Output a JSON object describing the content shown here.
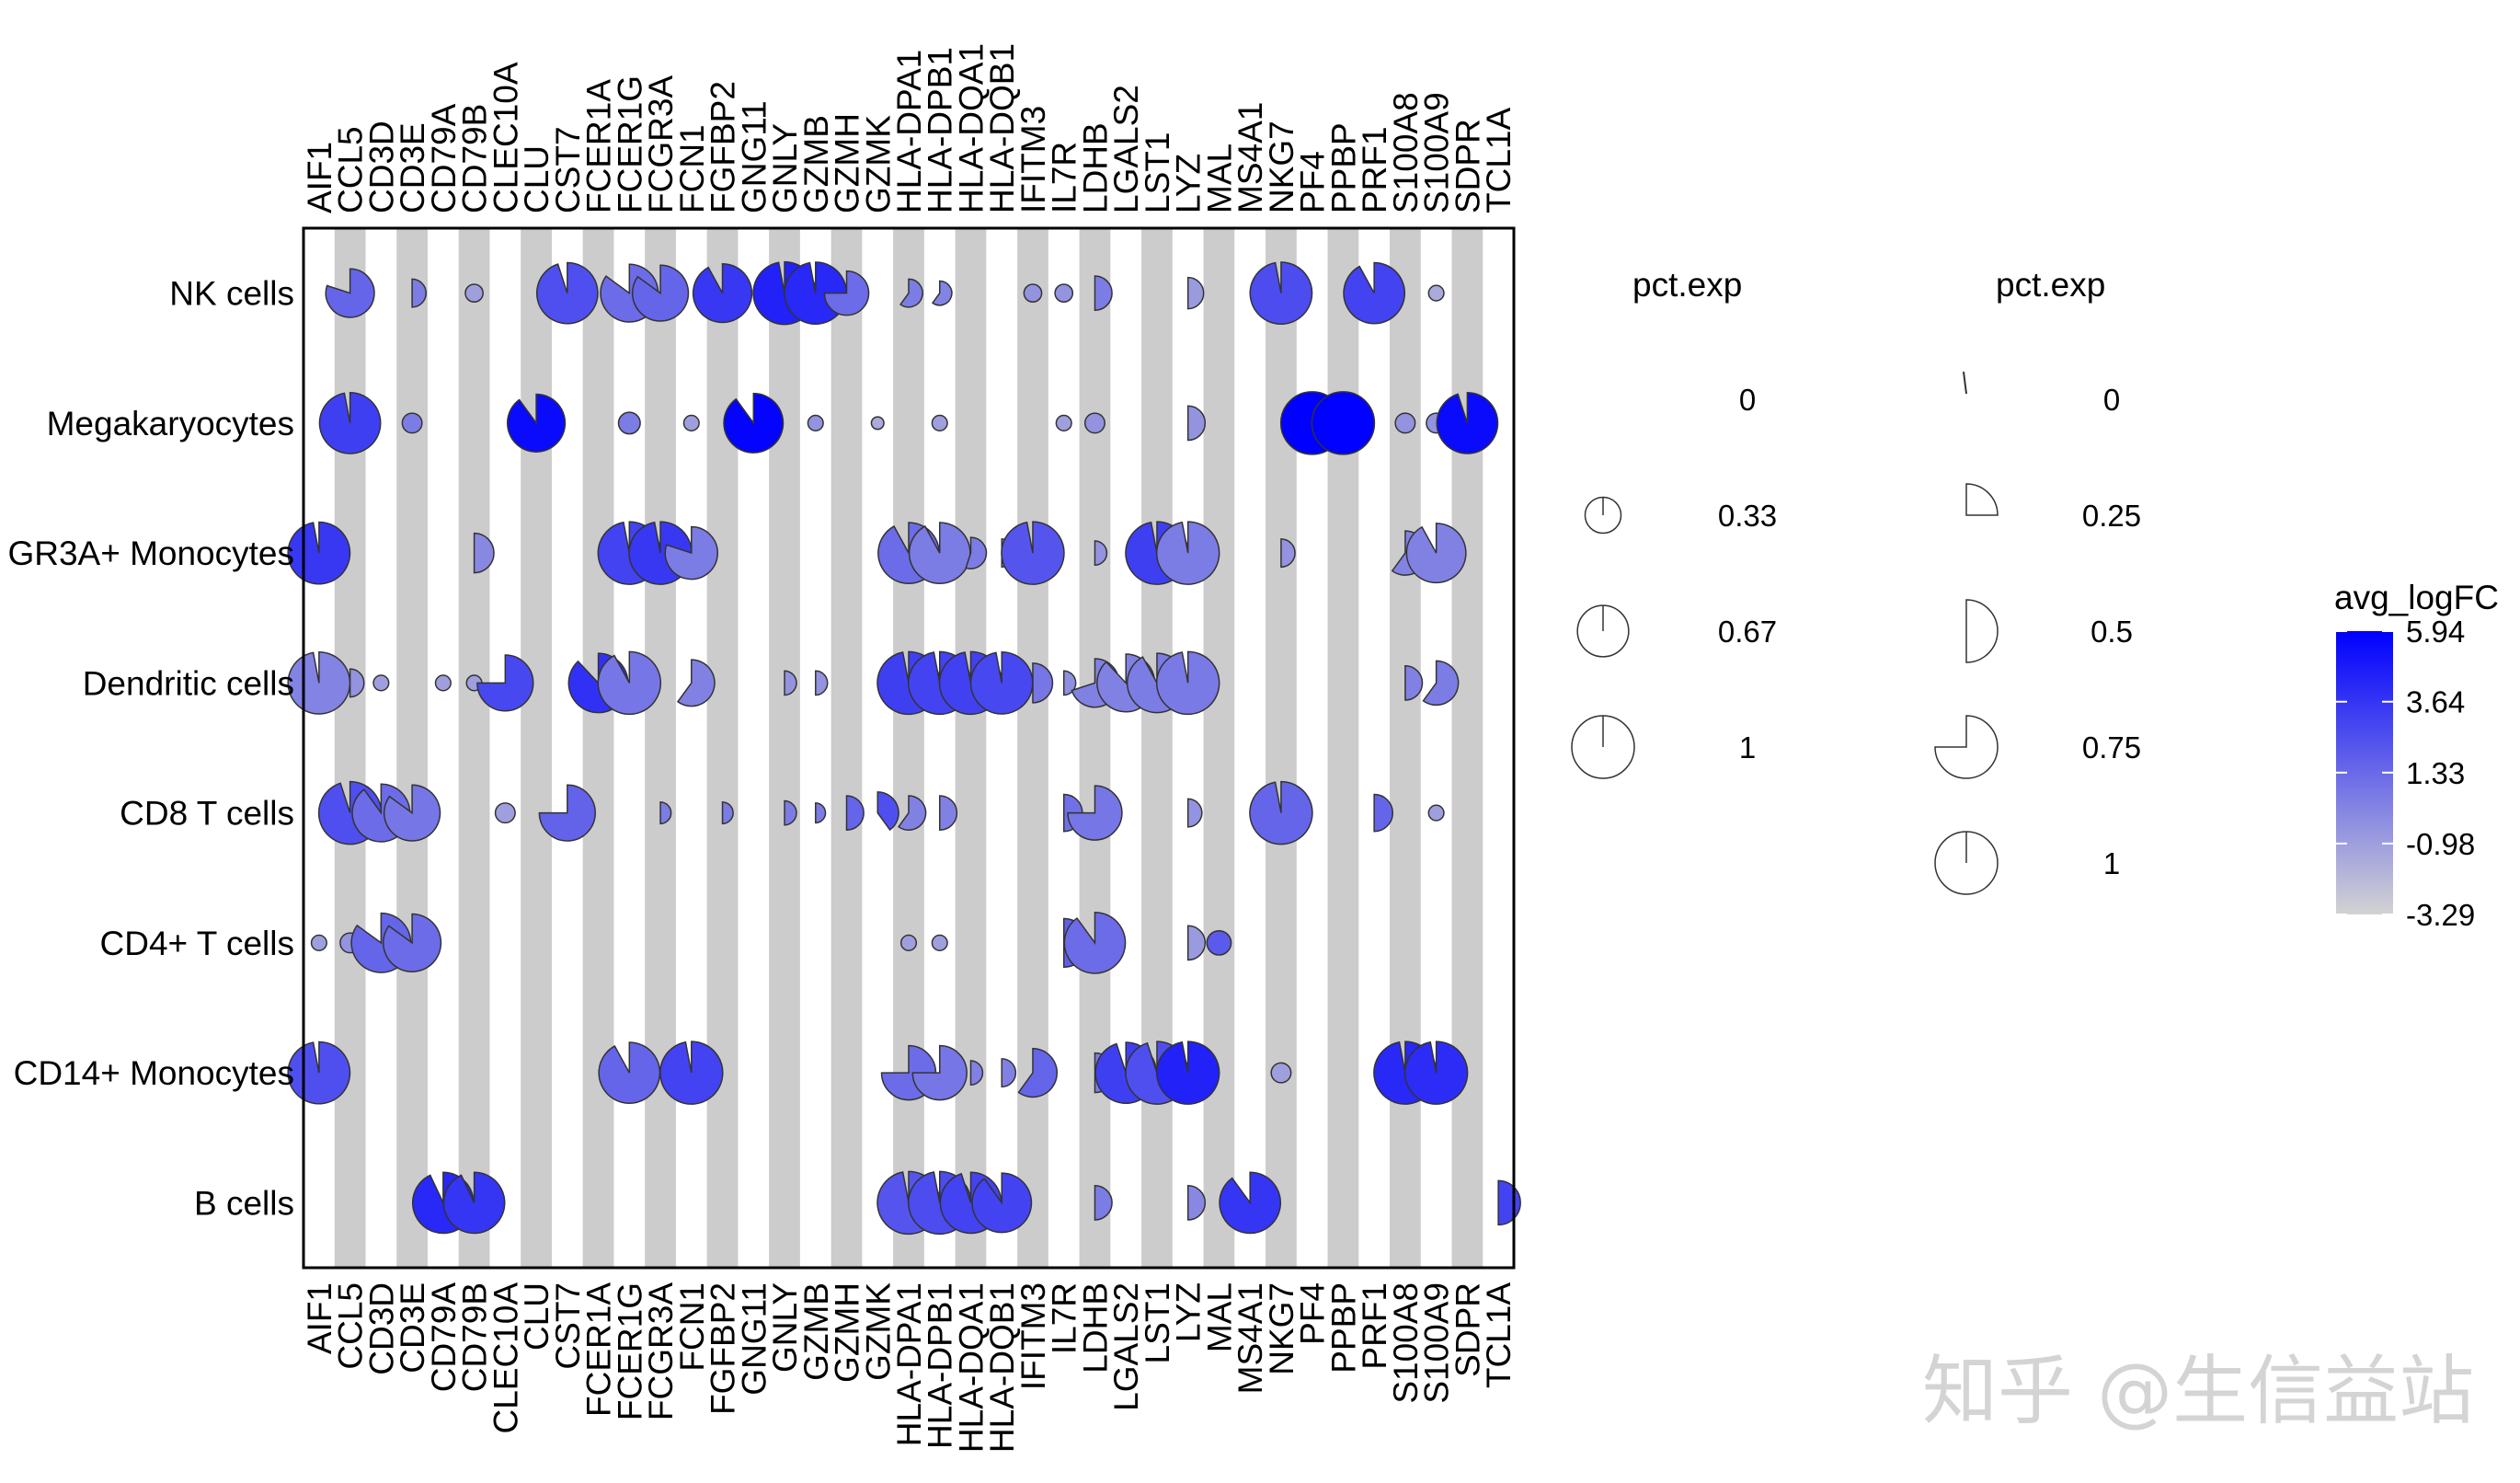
{
  "chart_data": {
    "type": "scatterpie",
    "genes": [
      "AIF1",
      "CCL5",
      "CD3D",
      "CD3E",
      "CD79A",
      "CD79B",
      "CLEC10A",
      "CLU",
      "CST7",
      "FCER1A",
      "FCER1G",
      "FCGR3A",
      "FCN1",
      "FGFBP2",
      "GNG11",
      "GNLY",
      "GZMB",
      "GZMH",
      "GZMK",
      "HLA-DPA1",
      "HLA-DPB1",
      "HLA-DQA1",
      "HLA-DQB1",
      "IFITM3",
      "IL7R",
      "LDHB",
      "LGALS2",
      "LST1",
      "LYZ",
      "MAL",
      "MS4A1",
      "NKG7",
      "PF4",
      "PPBP",
      "PRF1",
      "S100A8",
      "S100A9",
      "SDPR",
      "TCL1A"
    ],
    "cell_types": [
      "NK cells",
      "Megakaryocytes",
      "GR3A+ Monocytes",
      "Dendritic cells",
      "CD8 T cells",
      "CD4+ T cells",
      "CD14+ Monocytes",
      "B cells"
    ],
    "cells": [
      {
        "cell": "NK cells",
        "gene": "CCL5",
        "pct": 0.6,
        "frac": 0.8,
        "fc": 1.5
      },
      {
        "cell": "NK cells",
        "gene": "CD3E",
        "pct": 0.2,
        "frac": 0.5,
        "fc": 0.5
      },
      {
        "cell": "NK cells",
        "gene": "CD79B",
        "pct": 0.08,
        "frac": 1,
        "fc": -1
      },
      {
        "cell": "NK cells",
        "gene": "CST7",
        "pct": 0.95,
        "frac": 0.95,
        "fc": 2.5
      },
      {
        "cell": "NK cells",
        "gene": "FCER1G",
        "pct": 0.85,
        "frac": 0.85,
        "fc": 1.2
      },
      {
        "cell": "NK cells",
        "gene": "FCGR3A",
        "pct": 0.8,
        "frac": 0.85,
        "fc": 1.5
      },
      {
        "cell": "NK cells",
        "gene": "FGFBP2",
        "pct": 0.88,
        "frac": 0.92,
        "fc": 3.5
      },
      {
        "cell": "NK cells",
        "gene": "GNLY",
        "pct": 1,
        "frac": 0.97,
        "fc": 4.5
      },
      {
        "cell": "NK cells",
        "gene": "GZMB",
        "pct": 0.98,
        "frac": 0.97,
        "fc": 4.2
      },
      {
        "cell": "NK cells",
        "gene": "GZMH",
        "pct": 0.5,
        "frac": 0.75,
        "fc": 1.2
      },
      {
        "cell": "NK cells",
        "gene": "HLA-DPA1",
        "pct": 0.2,
        "frac": 0.6,
        "fc": 0.5
      },
      {
        "cell": "NK cells",
        "gene": "HLA-DPB1",
        "pct": 0.15,
        "frac": 0.6,
        "fc": 0.2
      },
      {
        "cell": "NK cells",
        "gene": "IFITM3",
        "pct": 0.08,
        "frac": 1,
        "fc": -0.5
      },
      {
        "cell": "NK cells",
        "gene": "IL7R",
        "pct": 0.08,
        "frac": 1,
        "fc": -0.5
      },
      {
        "cell": "NK cells",
        "gene": "LDHB",
        "pct": 0.3,
        "frac": 0.5,
        "fc": 0.5
      },
      {
        "cell": "NK cells",
        "gene": "LYZ",
        "pct": 0.25,
        "frac": 0.5,
        "fc": -0.8
      },
      {
        "cell": "NK cells",
        "gene": "NKG7",
        "pct": 0.98,
        "frac": 0.97,
        "fc": 2.6
      },
      {
        "cell": "NK cells",
        "gene": "PRF1",
        "pct": 0.95,
        "frac": 0.92,
        "fc": 3.0
      },
      {
        "cell": "NK cells",
        "gene": "S100A9",
        "pct": 0.06,
        "frac": 1,
        "fc": -1.5
      },
      {
        "cell": "Megakaryocytes",
        "gene": "CCL5",
        "pct": 0.95,
        "frac": 0.97,
        "fc": 3.2
      },
      {
        "cell": "Megakaryocytes",
        "gene": "CD3E",
        "pct": 0.1,
        "frac": 1,
        "fc": 0.5
      },
      {
        "cell": "Megakaryocytes",
        "gene": "CLU",
        "pct": 0.85,
        "frac": 0.9,
        "fc": 5.5
      },
      {
        "cell": "Megakaryocytes",
        "gene": "FCER1G",
        "pct": 0.12,
        "frac": 1,
        "fc": 0.5
      },
      {
        "cell": "Megakaryocytes",
        "gene": "FCN1",
        "pct": 0.06,
        "frac": 1,
        "fc": -1
      },
      {
        "cell": "Megakaryocytes",
        "gene": "GNG11",
        "pct": 0.9,
        "frac": 0.9,
        "fc": 5.8
      },
      {
        "cell": "Megakaryocytes",
        "gene": "GZMB",
        "pct": 0.06,
        "frac": 1,
        "fc": -0.5
      },
      {
        "cell": "Megakaryocytes",
        "gene": "GZMK",
        "pct": 0.04,
        "frac": 1,
        "fc": -1.5
      },
      {
        "cell": "Megakaryocytes",
        "gene": "HLA-DPB1",
        "pct": 0.06,
        "frac": 1,
        "fc": -1
      },
      {
        "cell": "Megakaryocytes",
        "gene": "IL7R",
        "pct": 0.06,
        "frac": 1,
        "fc": -1
      },
      {
        "cell": "Megakaryocytes",
        "gene": "LDHB",
        "pct": 0.1,
        "frac": 1,
        "fc": -0.5
      },
      {
        "cell": "Megakaryocytes",
        "gene": "LYZ",
        "pct": 0.3,
        "frac": 0.5,
        "fc": -0.5
      },
      {
        "cell": "Megakaryocytes",
        "gene": "PF4",
        "pct": 1,
        "frac": 1,
        "fc": 5.94
      },
      {
        "cell": "Megakaryocytes",
        "gene": "PPBP",
        "pct": 1,
        "frac": 1,
        "fc": 5.9
      },
      {
        "cell": "Megakaryocytes",
        "gene": "S100A8",
        "pct": 0.1,
        "frac": 1,
        "fc": -0.5
      },
      {
        "cell": "Megakaryocytes",
        "gene": "S100A9",
        "pct": 0.1,
        "frac": 1,
        "fc": -0.5
      },
      {
        "cell": "Megakaryocytes",
        "gene": "SDPR",
        "pct": 0.95,
        "frac": 0.95,
        "fc": 5.5
      },
      {
        "cell": "GR3A+ Monocytes",
        "gene": "AIF1",
        "pct": 0.98,
        "frac": 0.97,
        "fc": 3.5
      },
      {
        "cell": "GR3A+ Monocytes",
        "gene": "CD79B",
        "pct": 0.4,
        "frac": 0.5,
        "fc": 0.0
      },
      {
        "cell": "GR3A+ Monocytes",
        "gene": "FCER1G",
        "pct": 1,
        "frac": 0.97,
        "fc": 3.0
      },
      {
        "cell": "GR3A+ Monocytes",
        "gene": "FCGR3A",
        "pct": 1,
        "frac": 0.97,
        "fc": 3.5
      },
      {
        "cell": "GR3A+ Monocytes",
        "gene": "FCN1",
        "pct": 0.7,
        "frac": 0.8,
        "fc": 0.5
      },
      {
        "cell": "GR3A+ Monocytes",
        "gene": "HLA-DPA1",
        "pct": 0.95,
        "frac": 0.92,
        "fc": 1.2
      },
      {
        "cell": "GR3A+ Monocytes",
        "gene": "HLA-DPB1",
        "pct": 0.95,
        "frac": 0.92,
        "fc": 0.5
      },
      {
        "cell": "GR3A+ Monocytes",
        "gene": "HLA-DQA1",
        "pct": 0.25,
        "frac": 0.55,
        "fc": 0.5
      },
      {
        "cell": "GR3A+ Monocytes",
        "gene": "HLA-DQB1",
        "pct": 0.2,
        "frac": 0.5,
        "fc": 0.3
      },
      {
        "cell": "GR3A+ Monocytes",
        "gene": "IFITM3",
        "pct": 1,
        "frac": 0.97,
        "fc": 2.2
      },
      {
        "cell": "GR3A+ Monocytes",
        "gene": "LDHB",
        "pct": 0.15,
        "frac": 0.5,
        "fc": -0.5
      },
      {
        "cell": "GR3A+ Monocytes",
        "gene": "LST1",
        "pct": 1,
        "frac": 0.97,
        "fc": 3.2
      },
      {
        "cell": "GR3A+ Monocytes",
        "gene": "LYZ",
        "pct": 1,
        "frac": 0.97,
        "fc": 0.5
      },
      {
        "cell": "GR3A+ Monocytes",
        "gene": "NKG7",
        "pct": 0.2,
        "frac": 0.5,
        "fc": -0.5
      },
      {
        "cell": "GR3A+ Monocytes",
        "gene": "S100A8",
        "pct": 0.5,
        "frac": 0.6,
        "fc": 0.2
      },
      {
        "cell": "GR3A+ Monocytes",
        "gene": "S100A9",
        "pct": 0.9,
        "frac": 0.92,
        "fc": 0.3
      },
      {
        "cell": "Dendritic cells",
        "gene": "AIF1",
        "pct": 0.98,
        "frac": 0.97,
        "fc": 0.2
      },
      {
        "cell": "Dendritic cells",
        "gene": "CCL5",
        "pct": 0.2,
        "frac": 0.5,
        "fc": -0.5
      },
      {
        "cell": "Dendritic cells",
        "gene": "CD3D",
        "pct": 0.06,
        "frac": 1,
        "fc": -1
      },
      {
        "cell": "Dendritic cells",
        "gene": "CD79A",
        "pct": 0.06,
        "frac": 1,
        "fc": -1
      },
      {
        "cell": "Dendritic cells",
        "gene": "CD79B",
        "pct": 0.06,
        "frac": 1,
        "fc": -1
      },
      {
        "cell": "Dendritic cells",
        "gene": "CLEC10A",
        "pct": 0.8,
        "frac": 0.75,
        "fc": 2.8
      },
      {
        "cell": "Dendritic cells",
        "gene": "FCER1A",
        "pct": 0.9,
        "frac": 0.88,
        "fc": 3.8
      },
      {
        "cell": "Dendritic cells",
        "gene": "FCER1G",
        "pct": 1,
        "frac": 0.92,
        "fc": 0.8
      },
      {
        "cell": "Dendritic cells",
        "gene": "FCN1",
        "pct": 0.55,
        "frac": 0.6,
        "fc": 0.3
      },
      {
        "cell": "Dendritic cells",
        "gene": "GNLY",
        "pct": 0.15,
        "frac": 0.5,
        "fc": -0.5
      },
      {
        "cell": "Dendritic cells",
        "gene": "GZMB",
        "pct": 0.15,
        "frac": 0.5,
        "fc": -0.5
      },
      {
        "cell": "Dendritic cells",
        "gene": "HLA-DPA1",
        "pct": 1,
        "frac": 0.97,
        "fc": 3.2
      },
      {
        "cell": "Dendritic cells",
        "gene": "HLA-DPB1",
        "pct": 1,
        "frac": 0.97,
        "fc": 3.0
      },
      {
        "cell": "Dendritic cells",
        "gene": "HLA-DQA1",
        "pct": 1,
        "frac": 0.97,
        "fc": 3.1
      },
      {
        "cell": "Dendritic cells",
        "gene": "HLA-DQB1",
        "pct": 0.98,
        "frac": 0.97,
        "fc": 2.8
      },
      {
        "cell": "Dendritic cells",
        "gene": "IFITM3",
        "pct": 0.4,
        "frac": 0.5,
        "fc": 0.8
      },
      {
        "cell": "Dendritic cells",
        "gene": "IL7R",
        "pct": 0.15,
        "frac": 0.5,
        "fc": -0.3
      },
      {
        "cell": "Dendritic cells",
        "gene": "LDHB",
        "pct": 0.6,
        "frac": 0.7,
        "fc": 0.3
      },
      {
        "cell": "Dendritic cells",
        "gene": "LGALS2",
        "pct": 0.85,
        "frac": 0.88,
        "fc": 0.3
      },
      {
        "cell": "Dendritic cells",
        "gene": "LST1",
        "pct": 0.9,
        "frac": 0.92,
        "fc": 0.5
      },
      {
        "cell": "Dendritic cells",
        "gene": "LYZ",
        "pct": 1,
        "frac": 0.97,
        "fc": 0.6
      },
      {
        "cell": "Dendritic cells",
        "gene": "S100A8",
        "pct": 0.3,
        "frac": 0.5,
        "fc": 0.3
      },
      {
        "cell": "Dendritic cells",
        "gene": "S100A9",
        "pct": 0.5,
        "frac": 0.6,
        "fc": 0.5
      },
      {
        "cell": "CD8 T cells",
        "gene": "CCL5",
        "pct": 1,
        "frac": 0.95,
        "fc": 2.5
      },
      {
        "cell": "CD8 T cells",
        "gene": "CD3D",
        "pct": 0.85,
        "frac": 0.9,
        "fc": 1.2
      },
      {
        "cell": "CD8 T cells",
        "gene": "CD3E",
        "pct": 0.8,
        "frac": 0.85,
        "fc": 0.8
      },
      {
        "cell": "CD8 T cells",
        "gene": "CLEC10A",
        "pct": 0.1,
        "frac": 1,
        "fc": -1
      },
      {
        "cell": "CD8 T cells",
        "gene": "CST7",
        "pct": 0.8,
        "frac": 0.75,
        "fc": 1.6
      },
      {
        "cell": "CD8 T cells",
        "gene": "FCGR3A",
        "pct": 0.12,
        "frac": 0.5,
        "fc": 0.5
      },
      {
        "cell": "CD8 T cells",
        "gene": "FGFBP2",
        "pct": 0.12,
        "frac": 0.5,
        "fc": 0.5
      },
      {
        "cell": "CD8 T cells",
        "gene": "GNLY",
        "pct": 0.15,
        "frac": 0.5,
        "fc": 0.5
      },
      {
        "cell": "CD8 T cells",
        "gene": "GZMB",
        "pct": 0.1,
        "frac": 0.5,
        "fc": 0.5
      },
      {
        "cell": "CD8 T cells",
        "gene": "GZMH",
        "pct": 0.3,
        "frac": 0.5,
        "fc": 1.5
      },
      {
        "cell": "CD8 T cells",
        "gene": "GZMK",
        "pct": 0.45,
        "frac": 0.4,
        "fc": 2.5
      },
      {
        "cell": "CD8 T cells",
        "gene": "HLA-DPA1",
        "pct": 0.3,
        "frac": 0.6,
        "fc": 0.3
      },
      {
        "cell": "CD8 T cells",
        "gene": "HLA-DPB1",
        "pct": 0.3,
        "frac": 0.5,
        "fc": 0.3
      },
      {
        "cell": "CD8 T cells",
        "gene": "IL7R",
        "pct": 0.35,
        "frac": 0.5,
        "fc": 1.0
      },
      {
        "cell": "CD8 T cells",
        "gene": "LDHB",
        "pct": 0.75,
        "frac": 0.75,
        "fc": 0.8
      },
      {
        "cell": "CD8 T cells",
        "gene": "LYZ",
        "pct": 0.2,
        "frac": 0.5,
        "fc": -0.5
      },
      {
        "cell": "CD8 T cells",
        "gene": "NKG7",
        "pct": 1,
        "frac": 0.97,
        "fc": 1.5
      },
      {
        "cell": "CD8 T cells",
        "gene": "PRF1",
        "pct": 0.35,
        "frac": 0.5,
        "fc": 1.5
      },
      {
        "cell": "CD8 T cells",
        "gene": "S100A9",
        "pct": 0.06,
        "frac": 1,
        "fc": -1
      },
      {
        "cell": "CD4+ T cells",
        "gene": "AIF1",
        "pct": 0.06,
        "frac": 1,
        "fc": -1
      },
      {
        "cell": "CD4+ T cells",
        "gene": "CCL5",
        "pct": 0.1,
        "frac": 1,
        "fc": -0.5
      },
      {
        "cell": "CD4+ T cells",
        "gene": "CD3D",
        "pct": 0.9,
        "frac": 0.85,
        "fc": 1.5
      },
      {
        "cell": "CD4+ T cells",
        "gene": "CD3E",
        "pct": 0.85,
        "frac": 0.85,
        "fc": 1.2
      },
      {
        "cell": "CD4+ T cells",
        "gene": "HLA-DPA1",
        "pct": 0.06,
        "frac": 1,
        "fc": -1
      },
      {
        "cell": "CD4+ T cells",
        "gene": "HLA-DPB1",
        "pct": 0.06,
        "frac": 1,
        "fc": -1
      },
      {
        "cell": "CD4+ T cells",
        "gene": "IL7R",
        "pct": 0.6,
        "frac": 0.5,
        "fc": 1.8
      },
      {
        "cell": "CD4+ T cells",
        "gene": "LDHB",
        "pct": 0.95,
        "frac": 0.9,
        "fc": 1.2
      },
      {
        "cell": "CD4+ T cells",
        "gene": "LYZ",
        "pct": 0.3,
        "frac": 0.5,
        "fc": -0.8
      },
      {
        "cell": "CD4+ T cells",
        "gene": "MAL",
        "pct": 0.15,
        "frac": 1,
        "fc": 2.0
      },
      {
        "cell": "CD14+ Monocytes",
        "gene": "AIF1",
        "pct": 0.98,
        "frac": 0.97,
        "fc": 2.5
      },
      {
        "cell": "CD14+ Monocytes",
        "gene": "FCER1G",
        "pct": 0.95,
        "frac": 0.92,
        "fc": 1.5
      },
      {
        "cell": "CD14+ Monocytes",
        "gene": "FCN1",
        "pct": 1,
        "frac": 0.97,
        "fc": 3.0
      },
      {
        "cell": "CD14+ Monocytes",
        "gene": "HLA-DPA1",
        "pct": 0.75,
        "frac": 0.75,
        "fc": 1.2
      },
      {
        "cell": "CD14+ Monocytes",
        "gene": "HLA-DPB1",
        "pct": 0.75,
        "frac": 0.75,
        "fc": 0.8
      },
      {
        "cell": "CD14+ Monocytes",
        "gene": "HLA-DQA1",
        "pct": 0.15,
        "frac": 0.5,
        "fc": 0.3
      },
      {
        "cell": "CD14+ Monocytes",
        "gene": "HLA-DQB1",
        "pct": 0.2,
        "frac": 0.5,
        "fc": 0.3
      },
      {
        "cell": "CD14+ Monocytes",
        "gene": "IFITM3",
        "pct": 0.6,
        "frac": 0.6,
        "fc": 1.5
      },
      {
        "cell": "CD14+ Monocytes",
        "gene": "LDHB",
        "pct": 0.4,
        "frac": 0.5,
        "fc": 0.5
      },
      {
        "cell": "CD14+ Monocytes",
        "gene": "LGALS2",
        "pct": 0.95,
        "frac": 0.95,
        "fc": 3.2
      },
      {
        "cell": "CD14+ Monocytes",
        "gene": "LST1",
        "pct": 1,
        "frac": 0.95,
        "fc": 2.5
      },
      {
        "cell": "CD14+ Monocytes",
        "gene": "LYZ",
        "pct": 1,
        "frac": 0.97,
        "fc": 4.5
      },
      {
        "cell": "CD14+ Monocytes",
        "gene": "NKG7",
        "pct": 0.1,
        "frac": 1,
        "fc": -1
      },
      {
        "cell": "CD14+ Monocytes",
        "gene": "S100A8",
        "pct": 1,
        "frac": 0.97,
        "fc": 4.2
      },
      {
        "cell": "CD14+ Monocytes",
        "gene": "S100A9",
        "pct": 1,
        "frac": 0.97,
        "fc": 4.0
      },
      {
        "cell": "B cells",
        "gene": "CD79A",
        "pct": 0.95,
        "frac": 0.93,
        "fc": 4.2
      },
      {
        "cell": "B cells",
        "gene": "CD79B",
        "pct": 0.95,
        "frac": 0.93,
        "fc": 3.6
      },
      {
        "cell": "B cells",
        "gene": "HLA-DPA1",
        "pct": 1,
        "frac": 0.97,
        "fc": 2.2
      },
      {
        "cell": "B cells",
        "gene": "HLA-DPB1",
        "pct": 1,
        "frac": 0.97,
        "fc": 2.6
      },
      {
        "cell": "B cells",
        "gene": "HLA-DQA1",
        "pct": 0.95,
        "frac": 0.95,
        "fc": 3.0
      },
      {
        "cell": "B cells",
        "gene": "HLA-DQB1",
        "pct": 0.9,
        "frac": 0.9,
        "fc": 3.0
      },
      {
        "cell": "B cells",
        "gene": "LDHB",
        "pct": 0.3,
        "frac": 0.5,
        "fc": 0.5
      },
      {
        "cell": "B cells",
        "gene": "LYZ",
        "pct": 0.3,
        "frac": 0.5,
        "fc": 0.0
      },
      {
        "cell": "B cells",
        "gene": "MS4A1",
        "pct": 0.95,
        "frac": 0.9,
        "fc": 3.6
      },
      {
        "cell": "B cells",
        "gene": "TCL1A",
        "pct": 0.5,
        "frac": 0.5,
        "fc": 3.0
      }
    ],
    "color_scale": {
      "low": "#d3d3d3",
      "high": "#0000ff",
      "min": -3.29,
      "max": 5.94
    },
    "legend_size": {
      "title": "pct.exp",
      "values": [
        0,
        0.33,
        0.67,
        1
      ],
      "labels": [
        "0",
        "0.33",
        "0.67",
        "1"
      ]
    },
    "legend_pie": {
      "title": "pct.exp",
      "values": [
        0,
        0.25,
        0.5,
        0.75,
        1
      ],
      "labels": [
        "0",
        "0.25",
        "0.5",
        "0.75",
        "1"
      ]
    },
    "legend_color": {
      "title": "avg_logFC",
      "labels": [
        "5.94",
        "3.64",
        "1.33",
        "-0.98",
        "-3.29"
      ],
      "values": [
        5.94,
        3.64,
        1.33,
        -0.98,
        -3.29
      ]
    }
  },
  "watermark": "知乎 @生信益站"
}
